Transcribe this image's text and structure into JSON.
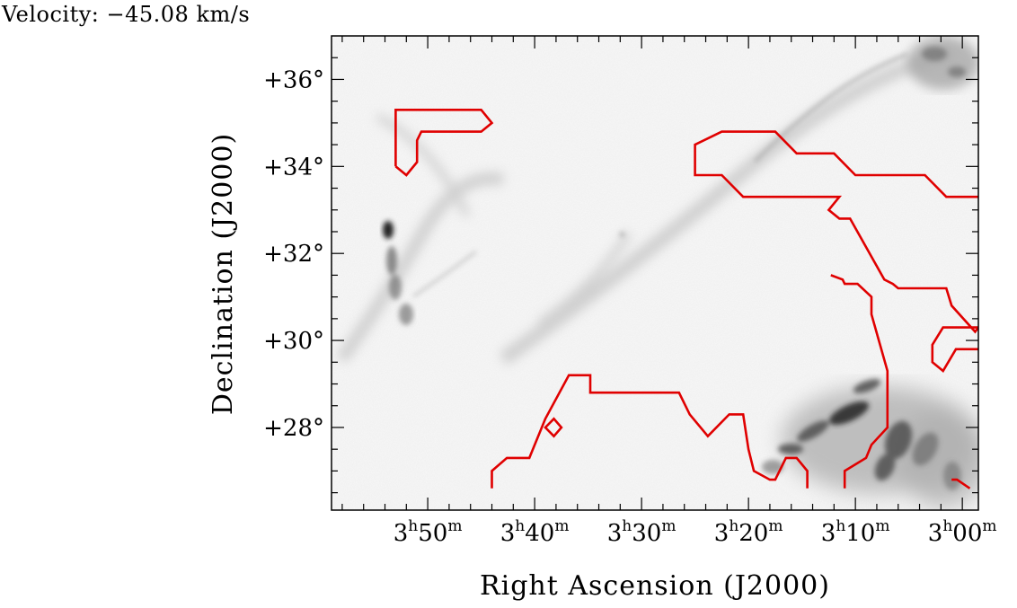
{
  "header": {
    "velocity_label": "Velocity: −45.08 km/s"
  },
  "chart_data": {
    "type": "contour-map",
    "title": "",
    "xlabel": "Right Ascension (J2000)",
    "ylabel": "Declination (J2000)",
    "x_unit": "RA hours-minutes",
    "y_unit": "degrees",
    "xlim_ra_minutes": [
      239,
      178.5
    ],
    "ylim_deg": [
      26.1,
      37.0
    ],
    "x_inverted": true,
    "x_ticks": [
      {
        "ra_minutes": 230,
        "h": "3",
        "m": "50"
      },
      {
        "ra_minutes": 220,
        "h": "3",
        "m": "40"
      },
      {
        "ra_minutes": 210,
        "h": "3",
        "m": "30"
      },
      {
        "ra_minutes": 200,
        "h": "3",
        "m": "20"
      },
      {
        "ra_minutes": 190,
        "h": "3",
        "m": "10"
      },
      {
        "ra_minutes": 180,
        "h": "3",
        "m": "00"
      }
    ],
    "y_ticks": [
      {
        "dec": 36,
        "label": "+36°"
      },
      {
        "dec": 34,
        "label": "+34°"
      },
      {
        "dec": 32,
        "label": "+32°"
      },
      {
        "dec": 30,
        "label": "+30°"
      },
      {
        "dec": 28,
        "label": "+28°"
      }
    ],
    "background": "greyscale emission image (inverted, dark = bright emission)",
    "contour_color": "#e00000",
    "contours": [
      {
        "closed": false,
        "points": [
          [
            233.0,
            34.0
          ],
          [
            233.0,
            35.3
          ],
          [
            225.0,
            35.3
          ],
          [
            224.0,
            35.0
          ],
          [
            225.0,
            34.8
          ],
          [
            230.6,
            34.8
          ],
          [
            231.0,
            34.6
          ],
          [
            231.0,
            34.1
          ],
          [
            232.0,
            33.8
          ],
          [
            233.0,
            34.0
          ]
        ]
      },
      {
        "closed": false,
        "points": [
          [
            178.5,
            33.3
          ],
          [
            181.5,
            33.3
          ],
          [
            183.5,
            33.8
          ],
          [
            190.0,
            33.8
          ],
          [
            192.0,
            34.3
          ],
          [
            195.5,
            34.3
          ],
          [
            197.5,
            34.8
          ],
          [
            202.5,
            34.8
          ],
          [
            205.0,
            34.5
          ],
          [
            205.0,
            33.8
          ],
          [
            202.5,
            33.8
          ],
          [
            200.5,
            33.3
          ],
          [
            191.5,
            33.3
          ],
          [
            192.5,
            33.0
          ],
          [
            191.5,
            32.8
          ],
          [
            190.5,
            32.8
          ],
          [
            187.3,
            31.4
          ],
          [
            186.5,
            31.3
          ],
          [
            186.0,
            31.2
          ],
          [
            181.5,
            31.2
          ],
          [
            181.0,
            30.8
          ],
          [
            178.8,
            30.2
          ],
          [
            178.5,
            30.3
          ]
        ]
      },
      {
        "closed": false,
        "points": [
          [
            178.5,
            30.3
          ],
          [
            181.8,
            30.3
          ],
          [
            182.8,
            29.9
          ],
          [
            182.8,
            29.5
          ],
          [
            181.8,
            29.3
          ],
          [
            180.6,
            29.8
          ],
          [
            178.5,
            29.8
          ]
        ]
      },
      {
        "closed": false,
        "points": [
          [
            224.0,
            26.6
          ],
          [
            224.0,
            27.0
          ],
          [
            222.6,
            27.3
          ],
          [
            220.5,
            27.3
          ],
          [
            219.0,
            28.2
          ],
          [
            216.8,
            29.2
          ],
          [
            214.8,
            29.2
          ],
          [
            214.8,
            28.8
          ],
          [
            212.0,
            28.8
          ],
          [
            206.5,
            28.8
          ],
          [
            206.3,
            28.7
          ],
          [
            205.5,
            28.3
          ],
          [
            203.8,
            27.8
          ],
          [
            201.8,
            28.3
          ],
          [
            200.5,
            28.3
          ],
          [
            200.0,
            27.5
          ],
          [
            199.5,
            27.0
          ],
          [
            198.0,
            26.8
          ],
          [
            197.5,
            26.8
          ],
          [
            196.5,
            27.3
          ],
          [
            195.5,
            27.3
          ],
          [
            194.5,
            27.0
          ],
          [
            194.5,
            26.6
          ]
        ]
      },
      {
        "closed": true,
        "points": [
          [
            217.5,
            28.0
          ],
          [
            218.2,
            28.2
          ],
          [
            219.0,
            28.0
          ],
          [
            218.2,
            27.8
          ],
          [
            217.5,
            28.0
          ]
        ]
      },
      {
        "closed": false,
        "points": [
          [
            191.0,
            26.6
          ],
          [
            191.0,
            27.0
          ],
          [
            189.0,
            27.3
          ],
          [
            188.5,
            27.6
          ],
          [
            187.0,
            28.0
          ],
          [
            187.0,
            29.3
          ],
          [
            188.5,
            30.6
          ],
          [
            188.5,
            31.0
          ],
          [
            189.8,
            31.3
          ],
          [
            191.0,
            31.3
          ],
          [
            191.2,
            31.4
          ],
          [
            192.3,
            31.5
          ]
        ]
      },
      {
        "closed": false,
        "points": [
          [
            179.3,
            26.6
          ],
          [
            180.5,
            26.8
          ],
          [
            181.0,
            26.8
          ]
        ]
      }
    ]
  }
}
